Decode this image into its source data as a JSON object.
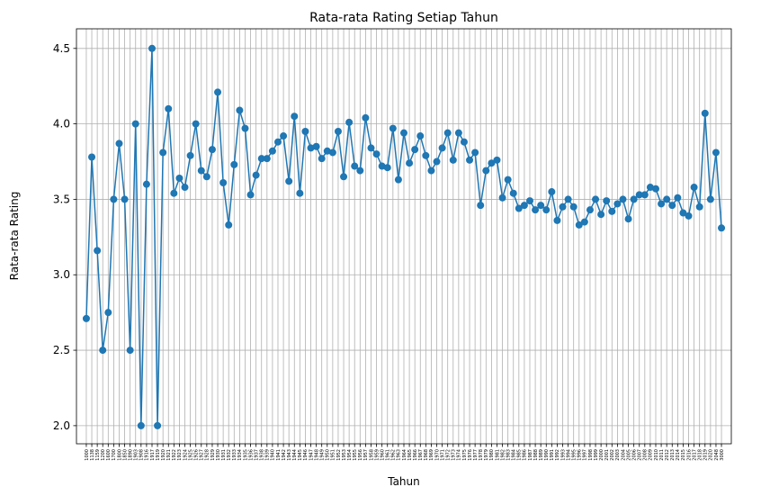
{
  "chart_data": {
    "type": "line",
    "title": "Rata-rata Rating Setiap Tahun",
    "xlabel": "Tahun",
    "ylabel": "Rata-rata Rating",
    "categories": [
      "1000",
      "1138",
      "1159",
      "1200",
      "1600",
      "1700",
      "1800",
      "1850",
      "1890",
      "1903",
      "1908",
      "1916",
      "1917",
      "1919",
      "1920",
      "1921",
      "1922",
      "1923",
      "1924",
      "1925",
      "1926",
      "1927",
      "1928",
      "1929",
      "1930",
      "1931",
      "1932",
      "1933",
      "1934",
      "1935",
      "1936",
      "1937",
      "1938",
      "1939",
      "1940",
      "1941",
      "1942",
      "1943",
      "1944",
      "1945",
      "1946",
      "1947",
      "1948",
      "1949",
      "1950",
      "1951",
      "1952",
      "1953",
      "1954",
      "1955",
      "1956",
      "1957",
      "1958",
      "1959",
      "1960",
      "1961",
      "1962",
      "1963",
      "1964",
      "1965",
      "1966",
      "1967",
      "1968",
      "1969",
      "1970",
      "1971",
      "1972",
      "1973",
      "1974",
      "1975",
      "1976",
      "1977",
      "1978",
      "1979",
      "1980",
      "1981",
      "1982",
      "1983",
      "1984",
      "1985",
      "1986",
      "1987",
      "1988",
      "1989",
      "1990",
      "1991",
      "1992",
      "1993",
      "1994",
      "1995",
      "1996",
      "1997",
      "1998",
      "1999",
      "2000",
      "2001",
      "2002",
      "2003",
      "2004",
      "2005",
      "2006",
      "2007",
      "2008",
      "2009",
      "2010",
      "2011",
      "2012",
      "2013",
      "2014",
      "2015",
      "2016",
      "2017",
      "2018",
      "2019",
      "2020",
      "2048",
      "3000"
    ],
    "series": [
      {
        "name": "Rata-rata Rating",
        "color": "#1f77b4",
        "values": [
          2.71,
          3.78,
          3.16,
          2.5,
          2.75,
          3.5,
          3.87,
          3.5,
          2.5,
          4.0,
          2.0,
          3.6,
          4.5,
          2.0,
          3.81,
          4.1,
          3.54,
          3.64,
          3.58,
          3.79,
          4.0,
          3.69,
          3.65,
          3.83,
          4.21,
          3.61,
          3.33,
          3.73,
          4.09,
          3.97,
          3.53,
          3.66,
          3.77,
          3.77,
          3.82,
          3.88,
          3.92,
          3.62,
          4.05,
          3.54,
          3.95,
          3.84,
          3.85,
          3.77,
          3.82,
          3.81,
          3.95,
          3.65,
          4.01,
          3.72,
          3.69,
          4.04,
          3.84,
          3.8,
          3.72,
          3.71,
          3.97,
          3.63,
          3.94,
          3.74,
          3.83,
          3.92,
          3.79,
          3.69,
          3.75,
          3.84,
          3.94,
          3.76,
          3.94,
          3.88,
          3.76,
          3.81,
          3.46,
          3.69,
          3.74,
          3.76,
          3.51,
          3.63,
          3.54,
          3.44,
          3.46,
          3.49,
          3.43,
          3.46,
          3.43,
          3.55,
          3.36,
          3.45,
          3.5,
          3.45,
          3.33,
          3.35,
          3.43,
          3.5,
          3.4,
          3.49,
          3.42,
          3.47,
          3.5,
          3.37,
          3.5,
          3.53,
          3.53,
          3.58,
          3.57,
          3.47,
          3.5,
          3.46,
          3.51,
          3.41,
          3.39,
          3.58,
          3.45,
          4.07,
          3.5,
          3.81,
          3.31
        ]
      }
    ],
    "ylim": [
      1.88,
      4.63
    ],
    "yticks": [
      {
        "value": 2.0,
        "label": "2.0"
      },
      2.5,
      {
        "value": 3.0,
        "label": "3.0"
      },
      3.5,
      {
        "value": 4.0,
        "label": "4.0"
      },
      4.5
    ],
    "grid": true
  }
}
